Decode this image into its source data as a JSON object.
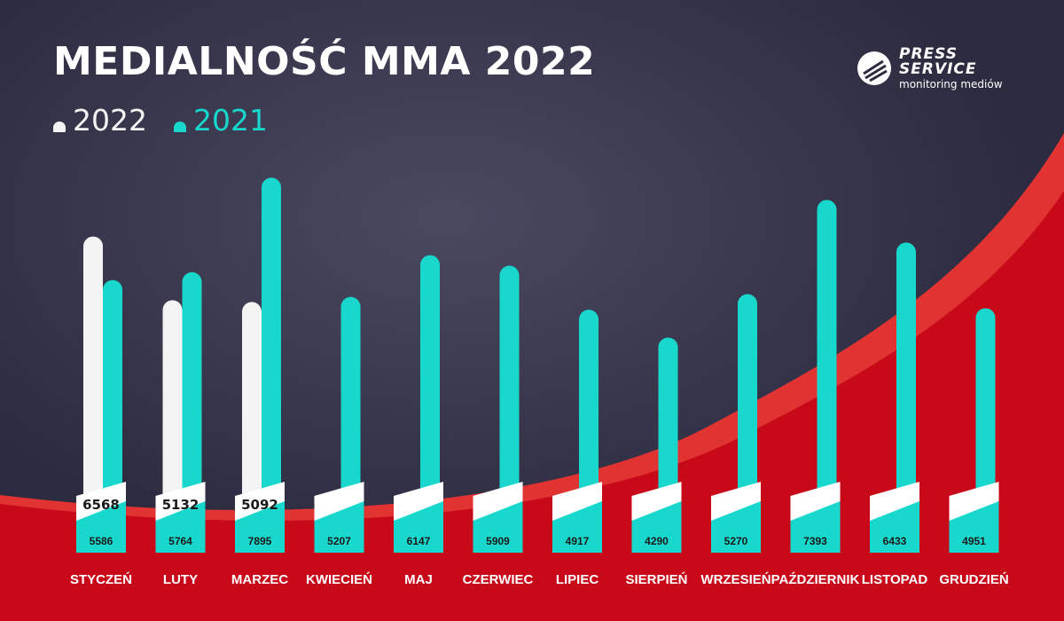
{
  "page": {
    "title": "MEDIALNOŚĆ MMA 2022",
    "colors": {
      "background": "#2c2b40",
      "red": "#c8091a",
      "red_light": "#e23333",
      "series_2022": "#f4f4f4",
      "series_2021": "#18d8cd"
    }
  },
  "logo": {
    "line1": "PRESS",
    "line2": "SERVICE",
    "line3": "monitoring mediów"
  },
  "chart_data": {
    "type": "bar",
    "title": "MEDIALNOŚĆ MMA 2022",
    "categories": [
      "STYCZEŃ",
      "LUTY",
      "MARZEC",
      "KWIECIEŃ",
      "MAJ",
      "CZERWIEC",
      "LIPIEC",
      "SIERPIEŃ",
      "WRZESIEŃ",
      "PAŹDZIERNIK",
      "LISTOPAD",
      "GRUDZIEŃ"
    ],
    "series": [
      {
        "name": "2022",
        "color": "#f4f4f4",
        "values": [
          6568,
          5132,
          5092,
          null,
          null,
          null,
          null,
          null,
          null,
          null,
          null,
          null
        ]
      },
      {
        "name": "2021",
        "color": "#18d8cd",
        "values": [
          5586,
          5764,
          7895,
          5207,
          6147,
          5909,
          4917,
          4290,
          5270,
          7393,
          6433,
          4951
        ]
      }
    ],
    "legend": "top-left",
    "grid": false
  }
}
